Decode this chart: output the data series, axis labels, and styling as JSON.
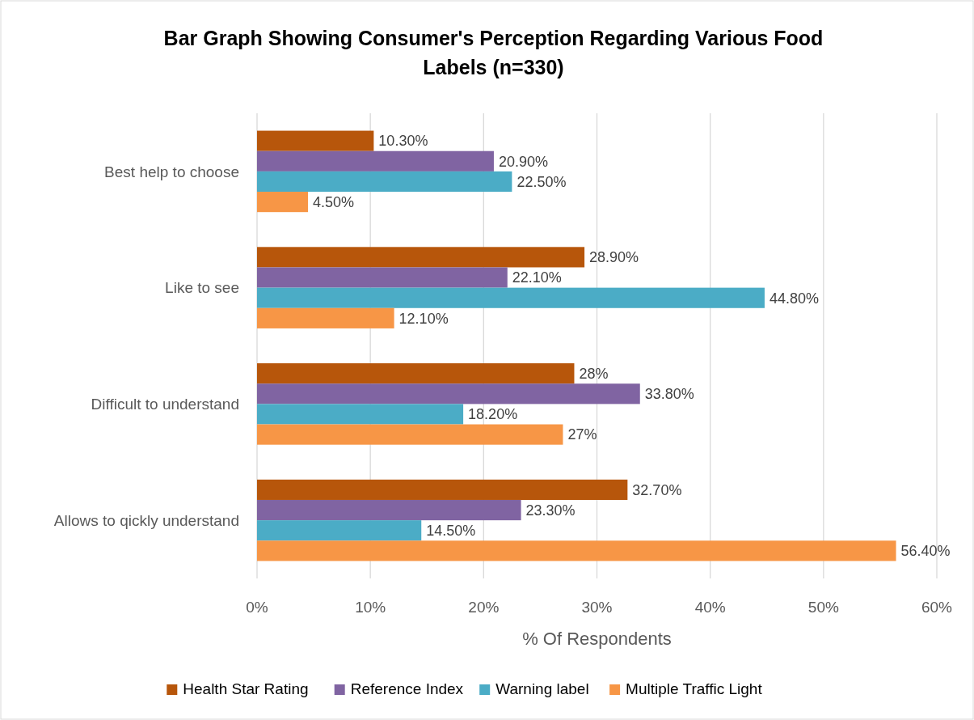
{
  "chart_data": {
    "type": "bar",
    "orientation": "horizontal",
    "title": "Bar Graph Showing Consumer's Perception Regarding Various Food Labels (n=330)",
    "xlabel": "% Of Respondents",
    "categories": [
      "Best help to choose",
      "Like to see",
      "Difficult to understand",
      "Allows to qickly understand"
    ],
    "series": [
      {
        "name": "Health Star Rating",
        "color": "#b7560b",
        "values": [
          10.3,
          28.9,
          28,
          32.7
        ],
        "value_labels": [
          "10.30%",
          "28.90%",
          "28%",
          "32.70%"
        ]
      },
      {
        "name": "Reference Index",
        "color": "#8064a2",
        "values": [
          20.9,
          22.1,
          33.8,
          23.3
        ],
        "value_labels": [
          "20.90%",
          "22.10%",
          "33.80%",
          "23.30%"
        ]
      },
      {
        "name": "Warning label",
        "color": "#4bacc6",
        "values": [
          22.5,
          44.8,
          18.2,
          14.5
        ],
        "value_labels": [
          "22.50%",
          "44.80%",
          "18.20%",
          "14.50%"
        ]
      },
      {
        "name": "Multiple Traffic Light",
        "color": "#f79646",
        "values": [
          4.5,
          12.1,
          27,
          56.4
        ],
        "value_labels": [
          "4.50%",
          "12.10%",
          "27%",
          "56.40%"
        ]
      }
    ],
    "xlim": [
      0,
      60
    ],
    "xticks": [
      {
        "value": 0,
        "label": "0%"
      },
      {
        "value": 10,
        "label": "10%"
      },
      {
        "value": 20,
        "label": "20%"
      },
      {
        "value": 30,
        "label": "30%"
      },
      {
        "value": 40,
        "label": "40%"
      },
      {
        "value": 50,
        "label": "50%"
      },
      {
        "value": 60,
        "label": "60%"
      }
    ],
    "grid": "x",
    "legend": "bottom"
  }
}
